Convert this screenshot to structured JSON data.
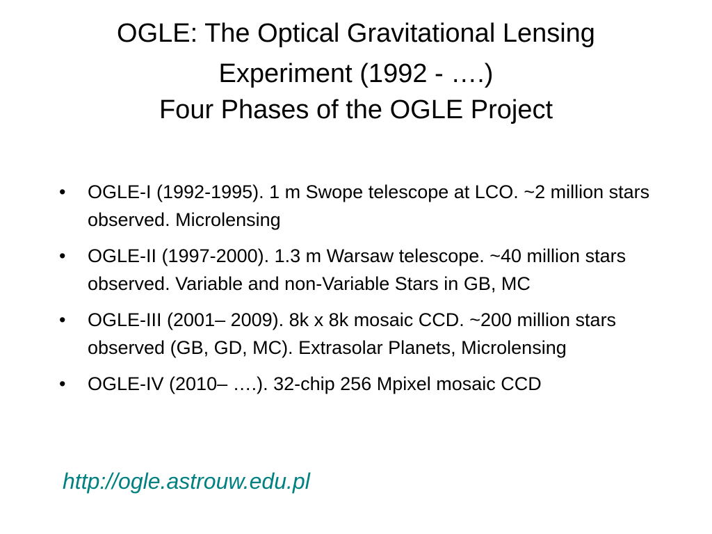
{
  "slide": {
    "title_line1": "OGLE: The Optical Gravitational Lensing",
    "title_line2": "Experiment (1992 - ….)",
    "title_line3": "Four Phases of the OGLE Project",
    "bullet_symbol": "•",
    "bullets": [
      {
        "text": "OGLE-I (1992-1995). 1 m Swope telescope at LCO. ~2 million stars observed. Microlensing"
      },
      {
        "text": "OGLE-II (1997-2000). 1.3 m Warsaw telescope. ~40 million stars observed. Variable and non-Variable Stars in GB, MC"
      },
      {
        "text": "OGLE-III (2001– 2009). 8k x 8k mosaic CCD. ~200 million stars observed (GB, GD, MC). Extrasolar Planets, Microlensing"
      },
      {
        "text": "OGLE-IV (2010– ….). 32-chip 256 Mpixel mosaic CCD"
      }
    ],
    "link_text": "http://ogle.astrouw.edu.pl",
    "link_color": "#008080"
  }
}
